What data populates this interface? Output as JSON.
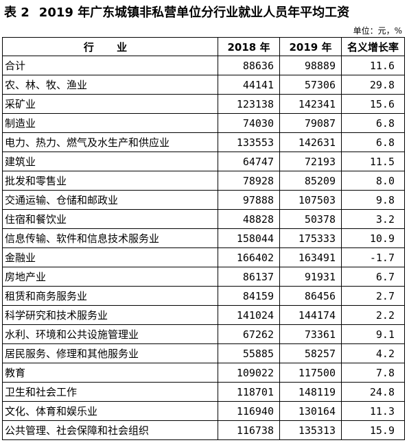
{
  "title": {
    "number": "表 2",
    "text": "2019 年广东城镇非私营单位分行业就业人员年平均工资"
  },
  "unit": "单位：元，%",
  "columns": [
    "行 业",
    "2018 年",
    "2019 年",
    "名义增长率"
  ],
  "rows": [
    [
      "合计",
      "88636",
      "98889",
      "11.6"
    ],
    [
      "农、林、牧、渔业",
      "44141",
      "57306",
      "29.8"
    ],
    [
      "采矿业",
      "123138",
      "142341",
      "15.6"
    ],
    [
      "制造业",
      "74030",
      "79087",
      "6.8"
    ],
    [
      "电力、热力、燃气及水生产和供应业",
      "133553",
      "142631",
      "6.8"
    ],
    [
      "建筑业",
      "64747",
      "72193",
      "11.5"
    ],
    [
      "批发和零售业",
      "78928",
      "85209",
      "8.0"
    ],
    [
      "交通运输、仓储和邮政业",
      "97888",
      "107503",
      "9.8"
    ],
    [
      "住宿和餐饮业",
      "48828",
      "50378",
      "3.2"
    ],
    [
      "信息传输、软件和信息技术服务业",
      "158044",
      "175333",
      "10.9"
    ],
    [
      "金融业",
      "166402",
      "163491",
      "-1.7"
    ],
    [
      "房地产业",
      "86137",
      "91931",
      "6.7"
    ],
    [
      "租赁和商务服务业",
      "84159",
      "86456",
      "2.7"
    ],
    [
      "科学研究和技术服务业",
      "141024",
      "144174",
      "2.2"
    ],
    [
      "水利、环境和公共设施管理业",
      "67262",
      "73361",
      "9.1"
    ],
    [
      "居民服务、修理和其他服务业",
      "55885",
      "58257",
      "4.2"
    ],
    [
      "教育",
      "109022",
      "117500",
      "7.8"
    ],
    [
      "卫生和社会工作",
      "118701",
      "148119",
      "24.8"
    ],
    [
      "文化、体育和娱乐业",
      "116940",
      "130164",
      "11.3"
    ],
    [
      "公共管理、社会保障和社会组织",
      "116738",
      "135313",
      "15.9"
    ]
  ]
}
